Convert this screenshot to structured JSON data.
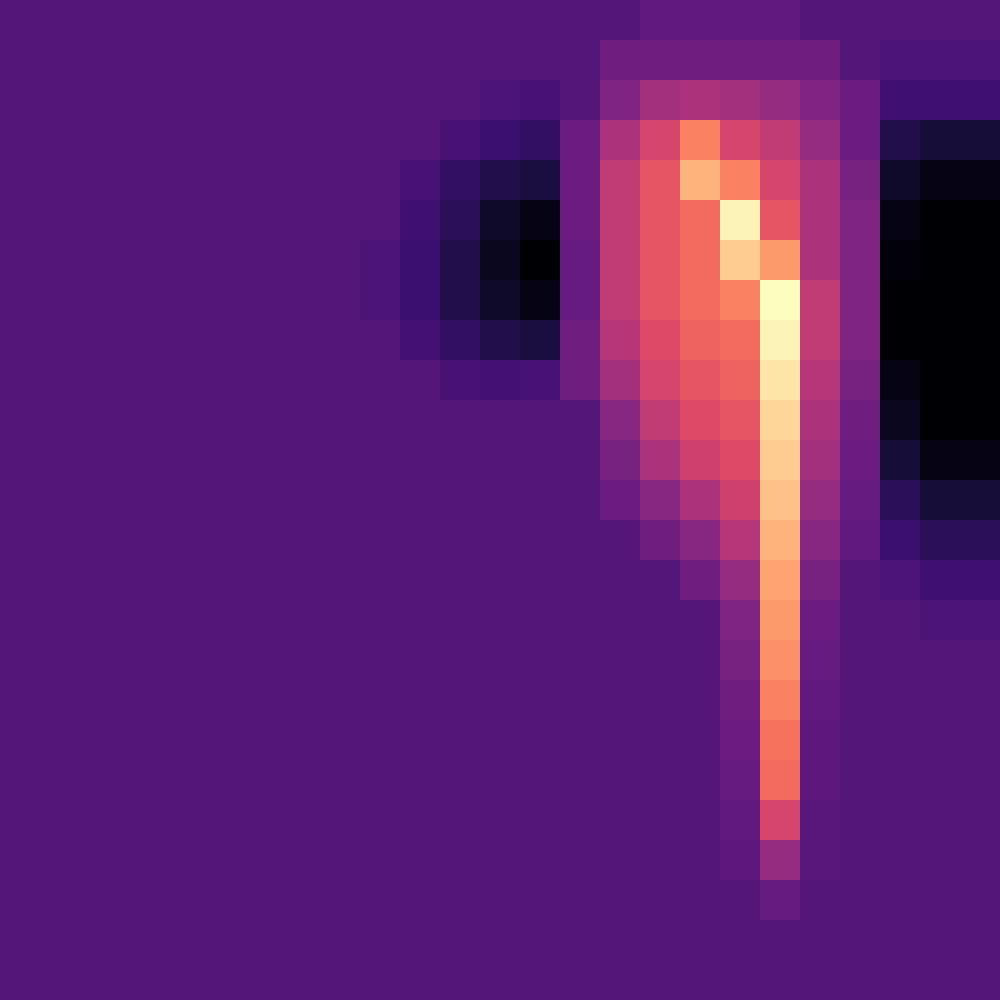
{
  "chart_data": {
    "type": "heatmap",
    "color": "magma",
    "tick_labels": false,
    "xlim": [
      -0.5,
      24.5
    ],
    "ylim": [
      -0.5,
      24.5
    ],
    "zlim": [
      0.5,
      10
    ],
    "cells": [
      [
        3,
        3,
        3,
        3,
        3,
        3,
        3,
        3,
        3,
        3,
        3,
        3,
        3,
        3,
        3,
        3,
        3.3,
        3.3,
        3.3,
        3.3,
        3,
        3,
        3,
        3,
        3
      ],
      [
        3,
        3,
        3,
        3,
        3,
        3,
        3,
        3,
        3,
        3,
        3,
        3,
        3,
        3,
        3,
        3.6,
        3.6,
        3.6,
        3.6,
        3.6,
        3.6,
        3,
        2.8,
        2.8,
        2.8
      ],
      [
        3,
        3,
        3,
        3,
        3,
        3,
        3,
        3,
        3,
        3,
        3,
        3,
        2.8,
        2.7,
        3,
        4,
        4.8,
        5,
        4.8,
        4.5,
        4,
        3.5,
        2.5,
        2.5,
        2.5
      ],
      [
        3,
        3,
        3,
        3,
        3,
        3,
        3,
        3,
        3,
        3,
        3,
        2.7,
        2.4,
        2.2,
        3.5,
        5,
        6,
        7.5,
        6,
        5.5,
        4.5,
        3.5,
        1.8,
        1.5,
        1.5
      ],
      [
        3,
        3,
        3,
        3,
        3,
        3,
        3,
        3,
        3,
        3,
        2.7,
        2.2,
        1.8,
        1.6,
        3.5,
        5.5,
        6.5,
        8.5,
        7.5,
        6,
        5,
        3.8,
        1.2,
        0.8,
        0.8
      ],
      [
        3,
        3,
        3,
        3,
        3,
        3,
        3,
        3,
        3,
        3,
        2.5,
        2,
        1.2,
        0.8,
        3.5,
        5.5,
        6.5,
        7,
        9.8,
        6.5,
        5,
        4,
        0.8,
        0.4,
        0.4
      ],
      [
        3,
        3,
        3,
        3,
        3,
        3,
        3,
        3,
        3,
        2.8,
        2.4,
        1.8,
        1,
        0.5,
        3.4,
        5.5,
        6.5,
        7,
        9,
        8,
        5,
        4,
        0.6,
        0.2,
        0.2
      ],
      [
        3,
        3,
        3,
        3,
        3,
        3,
        3,
        3,
        3,
        2.8,
        2.4,
        1.8,
        1.2,
        0.8,
        3.4,
        5.5,
        6.5,
        7,
        7.5,
        10,
        5.5,
        4,
        0.4,
        0.1,
        0.1
      ],
      [
        3,
        3,
        3,
        3,
        3,
        3,
        3,
        3,
        3,
        3,
        2.6,
        2.2,
        1.8,
        1.6,
        3.6,
        5.2,
        6.2,
        6.8,
        7,
        9.8,
        5.5,
        4,
        0.5,
        0.1,
        0.1
      ],
      [
        3,
        3,
        3,
        3,
        3,
        3,
        3,
        3,
        3,
        3,
        3,
        2.7,
        2.6,
        2.7,
        3.6,
        4.8,
        6,
        6.5,
        6.8,
        9.5,
        5.2,
        3.8,
        0.8,
        0.2,
        0.2
      ],
      [
        3,
        3,
        3,
        3,
        3,
        3,
        3,
        3,
        3,
        3,
        3,
        3,
        3,
        3,
        3,
        4.2,
        5.5,
        6.2,
        6.5,
        9.2,
        5,
        3.6,
        1,
        0.4,
        0.3
      ],
      [
        3,
        3,
        3,
        3,
        3,
        3,
        3,
        3,
        3,
        3,
        3,
        3,
        3,
        3,
        3,
        3.8,
        5,
        5.8,
        6.2,
        9,
        4.8,
        3.5,
        1.5,
        0.8,
        0.8
      ],
      [
        3,
        3,
        3,
        3,
        3,
        3,
        3,
        3,
        3,
        3,
        3,
        3,
        3,
        3,
        3,
        3.5,
        4.2,
        5,
        5.8,
        8.8,
        4.5,
        3.4,
        2,
        1.5,
        1.5
      ],
      [
        3,
        3,
        3,
        3,
        3,
        3,
        3,
        3,
        3,
        3,
        3,
        3,
        3,
        3,
        3,
        3,
        3.6,
        4.2,
        5.2,
        8.5,
        4.2,
        3.3,
        2.4,
        2,
        2
      ],
      [
        3,
        3,
        3,
        3,
        3,
        3,
        3,
        3,
        3,
        3,
        3,
        3,
        3,
        3,
        3,
        3,
        3,
        3.6,
        4.5,
        8.2,
        3.8,
        3,
        2.8,
        2.5,
        2.5
      ],
      [
        3,
        3,
        3,
        3,
        3,
        3,
        3,
        3,
        3,
        3,
        3,
        3,
        3,
        3,
        3,
        3,
        3,
        3,
        4,
        8,
        3.5,
        3,
        3,
        2.8,
        2.8
      ],
      [
        3,
        3,
        3,
        3,
        3,
        3,
        3,
        3,
        3,
        3,
        3,
        3,
        3,
        3,
        3,
        3,
        3,
        3,
        3.8,
        7.8,
        3.4,
        3,
        3,
        3,
        3
      ],
      [
        3,
        3,
        3,
        3,
        3,
        3,
        3,
        3,
        3,
        3,
        3,
        3,
        3,
        3,
        3,
        3,
        3,
        3,
        3.6,
        7.5,
        3.3,
        3,
        3,
        3,
        3
      ],
      [
        3,
        3,
        3,
        3,
        3,
        3,
        3,
        3,
        3,
        3,
        3,
        3,
        3,
        3,
        3,
        3,
        3,
        3,
        3.5,
        7.2,
        3.2,
        3,
        3,
        3,
        3
      ],
      [
        3,
        3,
        3,
        3,
        3,
        3,
        3,
        3,
        3,
        3,
        3,
        3,
        3,
        3,
        3,
        3,
        3,
        3,
        3.4,
        7,
        3.2,
        3,
        3,
        3,
        3
      ],
      [
        3,
        3,
        3,
        3,
        3,
        3,
        3,
        3,
        3,
        3,
        3,
        3,
        3,
        3,
        3,
        3,
        3,
        3,
        3.3,
        6,
        3.1,
        3,
        3,
        3,
        3
      ],
      [
        3,
        3,
        3,
        3,
        3,
        3,
        3,
        3,
        3,
        3,
        3,
        3,
        3,
        3,
        3,
        3,
        3,
        3,
        3.2,
        4.5,
        3.1,
        3,
        3,
        3,
        3
      ],
      [
        3,
        3,
        3,
        3,
        3,
        3,
        3,
        3,
        3,
        3,
        3,
        3,
        3,
        3,
        3,
        3,
        3,
        3,
        3,
        3.4,
        3,
        3,
        3,
        3,
        3
      ],
      [
        3,
        3,
        3,
        3,
        3,
        3,
        3,
        3,
        3,
        3,
        3,
        3,
        3,
        3,
        3,
        3,
        3,
        3,
        3,
        3,
        3,
        3,
        3,
        3,
        3
      ],
      [
        3,
        3,
        3,
        3,
        3,
        3,
        3,
        3,
        3,
        3,
        3,
        3,
        3,
        3,
        3,
        3,
        3,
        3,
        3,
        3,
        3,
        3,
        3,
        3,
        3
      ]
    ]
  }
}
